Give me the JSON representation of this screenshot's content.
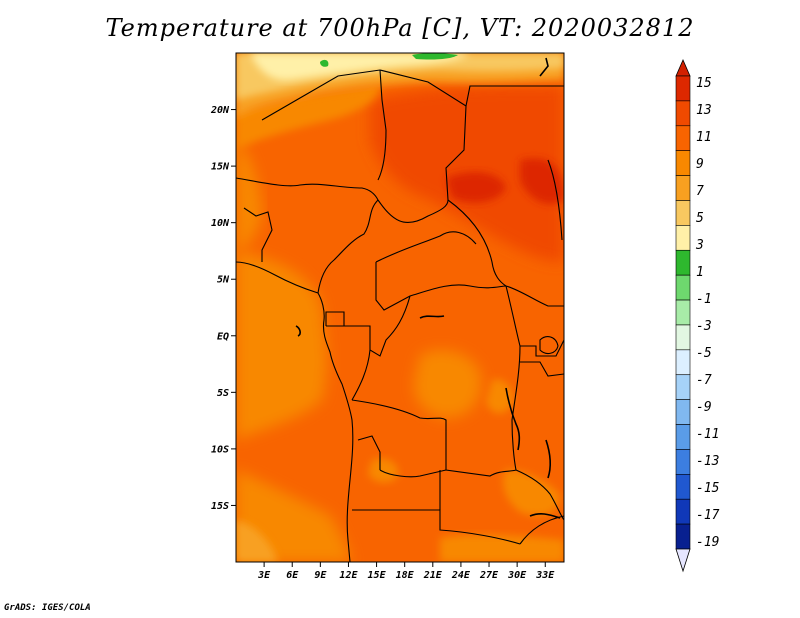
{
  "title": "Temperature at 700hPa [C], VT: 2020032812",
  "footer": "GrADS: IGES/COLA",
  "map": {
    "lon_range": [
      0,
      35
    ],
    "lat_range": [
      -20,
      25
    ],
    "lon_ticks": [
      {
        "value": 3,
        "label": "3E"
      },
      {
        "value": 6,
        "label": "6E"
      },
      {
        "value": 9,
        "label": "9E"
      },
      {
        "value": 12,
        "label": "12E"
      },
      {
        "value": 15,
        "label": "15E"
      },
      {
        "value": 18,
        "label": "18E"
      },
      {
        "value": 21,
        "label": "21E"
      },
      {
        "value": 24,
        "label": "24E"
      },
      {
        "value": 27,
        "label": "27E"
      },
      {
        "value": 30,
        "label": "30E"
      },
      {
        "value": 33,
        "label": "33E"
      }
    ],
    "lat_ticks": [
      {
        "value": 20,
        "label": "20N"
      },
      {
        "value": 15,
        "label": "15N"
      },
      {
        "value": 10,
        "label": "10N"
      },
      {
        "value": 5,
        "label": "5N"
      },
      {
        "value": 0,
        "label": "EQ"
      },
      {
        "value": -5,
        "label": "5S"
      },
      {
        "value": -10,
        "label": "10S"
      },
      {
        "value": -15,
        "label": "15S"
      }
    ]
  },
  "colorbar": {
    "labels": [
      "15",
      "13",
      "11",
      "9",
      "7",
      "5",
      "3",
      "1",
      "-1",
      "-3",
      "-5",
      "-7",
      "-9",
      "-11",
      "-13",
      "-15",
      "-17",
      "-19"
    ],
    "colors": [
      "#dd2800",
      "#f04a00",
      "#f86400",
      "#f88800",
      "#f8a020",
      "#f8c860",
      "#fff0a8",
      "#2eb82e",
      "#6ed86e",
      "#a8eca8",
      "#e2f7e2",
      "#dcefff",
      "#a6d2f8",
      "#80b8f0",
      "#5a9ce8",
      "#3c7ee0",
      "#2058d0",
      "#1038b8",
      "#082090"
    ],
    "bottom_arrow_color": "#e6e6ff",
    "top_arrow_color": "#d22000"
  }
}
